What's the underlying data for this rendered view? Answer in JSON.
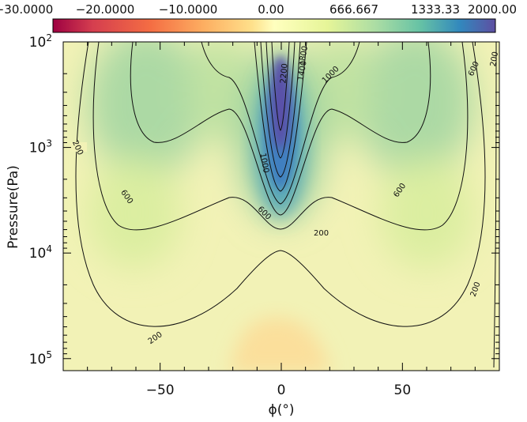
{
  "chart_data": {
    "type": "heatmap",
    "xlabel": "ϕ(°)",
    "ylabel": "Pressure(Pa)",
    "xlim": [
      -90,
      90
    ],
    "ylim": [
      100,
      130000
    ],
    "y_scale": "log",
    "y_inverted": true,
    "x_ticks": [
      "−50",
      "0",
      "50"
    ],
    "x_tick_values": [
      -50,
      0,
      50
    ],
    "y_ticks": [
      {
        "base": "10",
        "exp": "2",
        "value": 100
      },
      {
        "base": "10",
        "exp": "3",
        "value": 1000
      },
      {
        "base": "10",
        "exp": "4",
        "value": 10000
      },
      {
        "base": "10",
        "exp": "5",
        "value": 100000
      }
    ],
    "colorbar": {
      "labels": [
        "−30.0000",
        "−20.0000",
        "−10.0000",
        "0.00",
        "666.667",
        "1333.33",
        "2000.00"
      ],
      "values": [
        -30,
        -20,
        -10,
        0,
        666.667,
        1333.33,
        2000
      ],
      "colormap": [
        "#9e0142",
        "#d53e4f",
        "#f46d43",
        "#fdae61",
        "#fee08b",
        "#ffffbf",
        "#e6f598",
        "#abdda4",
        "#66c2a5",
        "#3288bd",
        "#5e4fa2"
      ]
    },
    "contours": [
      {
        "value": 200,
        "labels": [
          "200",
          "200",
          "200",
          "200",
          "200"
        ]
      },
      {
        "value": 600,
        "labels": [
          "600",
          "600",
          "600",
          "600"
        ]
      },
      {
        "value": 1000,
        "labels": [
          "1000",
          "1000"
        ]
      },
      {
        "value": 1400,
        "labels": [
          "1400"
        ]
      },
      {
        "value": 1800,
        "labels": [
          "1800"
        ]
      },
      {
        "value": 2200,
        "labels": [
          "2200"
        ]
      }
    ]
  }
}
